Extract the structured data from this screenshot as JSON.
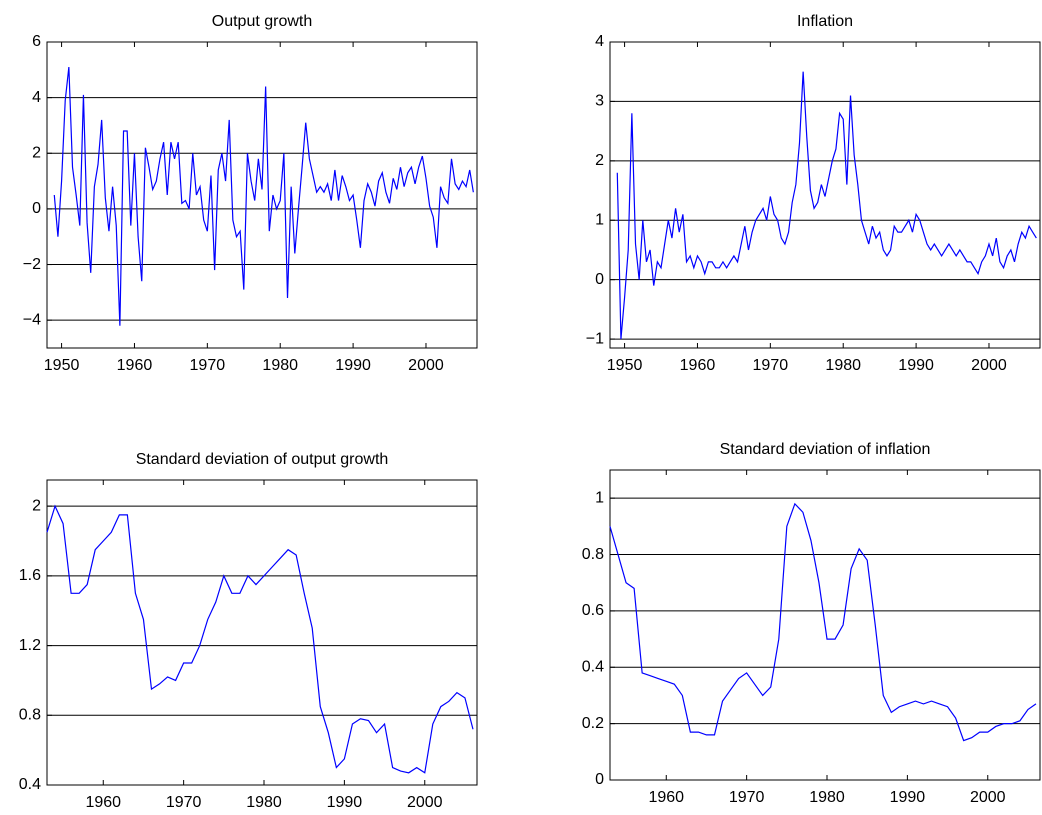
{
  "chart_data": [
    {
      "type": "line",
      "title": "Output growth",
      "color": "#0000ff",
      "grid": true,
      "xlim": [
        1948,
        2007
      ],
      "xticks": [
        1950,
        1960,
        1970,
        1980,
        1990,
        2000
      ],
      "ylim": [
        -5,
        6
      ],
      "yticks": [
        {
          "value": -4,
          "label": "−4"
        },
        {
          "value": -2,
          "label": "−2"
        },
        0,
        2,
        4,
        6
      ],
      "x": [
        1949,
        1949.5,
        1950,
        1950.5,
        1951,
        1951.5,
        1952,
        1952.5,
        1953,
        1953.5,
        1954,
        1954.5,
        1955,
        1955.5,
        1956,
        1956.5,
        1957,
        1957.5,
        1958,
        1958.5,
        1959,
        1959.5,
        1960,
        1960.5,
        1961,
        1961.5,
        1962,
        1962.5,
        1963,
        1963.5,
        1964,
        1964.5,
        1965,
        1965.5,
        1966,
        1966.5,
        1967,
        1967.5,
        1968,
        1968.5,
        1969,
        1969.5,
        1970,
        1970.5,
        1971,
        1971.5,
        1972,
        1972.5,
        1973,
        1973.5,
        1974,
        1974.5,
        1975,
        1975.5,
        1976,
        1976.5,
        1977,
        1977.5,
        1978,
        1978.5,
        1979,
        1979.5,
        1980,
        1980.5,
        1981,
        1981.5,
        1982,
        1982.5,
        1983,
        1983.5,
        1984,
        1984.5,
        1985,
        1985.5,
        1986,
        1986.5,
        1987,
        1987.5,
        1988,
        1988.5,
        1989,
        1989.5,
        1990,
        1990.5,
        1991,
        1991.5,
        1992,
        1992.5,
        1993,
        1993.5,
        1994,
        1994.5,
        1995,
        1995.5,
        1996,
        1996.5,
        1997,
        1997.5,
        1998,
        1998.5,
        1999,
        1999.5,
        2000,
        2000.5,
        2001,
        2001.5,
        2002,
        2002.5,
        2003,
        2003.5,
        2004,
        2004.5,
        2005,
        2005.5,
        2006,
        2006.5
      ],
      "values": [
        0.5,
        -1.0,
        1.0,
        3.9,
        5.1,
        1.5,
        0.5,
        -0.6,
        4.1,
        -0.5,
        -2.3,
        0.8,
        1.6,
        3.2,
        0.4,
        -0.8,
        0.8,
        -0.6,
        -4.2,
        2.8,
        2.8,
        -0.6,
        2.0,
        -1.0,
        -2.6,
        2.2,
        1.5,
        0.7,
        1.0,
        1.8,
        2.4,
        0.5,
        2.4,
        1.8,
        2.4,
        0.2,
        0.3,
        0.0,
        2.0,
        0.5,
        0.8,
        -0.4,
        -0.8,
        1.2,
        -2.2,
        1.4,
        2.0,
        1.0,
        3.2,
        -0.4,
        -1.0,
        -0.8,
        -2.9,
        2.0,
        1.0,
        0.3,
        1.8,
        0.7,
        4.4,
        -0.8,
        0.5,
        0.0,
        0.3,
        2.0,
        -3.2,
        0.8,
        -1.6,
        0.0,
        1.5,
        3.1,
        1.8,
        1.2,
        0.6,
        0.8,
        0.6,
        0.9,
        0.3,
        1.4,
        0.3,
        1.2,
        0.8,
        0.3,
        0.5,
        -0.4,
        -1.4,
        0.3,
        0.9,
        0.6,
        0.1,
        1.0,
        1.3,
        0.6,
        0.2,
        1.1,
        0.7,
        1.5,
        0.8,
        1.3,
        1.5,
        0.9,
        1.5,
        1.9,
        1.1,
        0.1,
        -0.3,
        -1.4,
        0.8,
        0.4,
        0.2,
        1.8,
        0.9,
        0.7,
        1.0,
        0.8,
        1.4,
        0.6
      ]
    },
    {
      "type": "line",
      "title": "Inflation",
      "color": "#0000ff",
      "grid": true,
      "xlim": [
        1948,
        2007
      ],
      "xticks": [
        1950,
        1960,
        1970,
        1980,
        1990,
        2000
      ],
      "ylim": [
        -1.15,
        4
      ],
      "yticks": [
        {
          "value": -1,
          "label": "−1"
        },
        0,
        1,
        2,
        3,
        4
      ],
      "x": [
        1949,
        1949.5,
        1950,
        1950.5,
        1951,
        1951.5,
        1952,
        1952.5,
        1953,
        1953.5,
        1954,
        1954.5,
        1955,
        1955.5,
        1956,
        1956.5,
        1957,
        1957.5,
        1958,
        1958.5,
        1959,
        1959.5,
        1960,
        1960.5,
        1961,
        1961.5,
        1962,
        1962.5,
        1963,
        1963.5,
        1964,
        1964.5,
        1965,
        1965.5,
        1966,
        1966.5,
        1967,
        1967.5,
        1968,
        1968.5,
        1969,
        1969.5,
        1970,
        1970.5,
        1971,
        1971.5,
        1972,
        1972.5,
        1973,
        1973.5,
        1974,
        1974.5,
        1975,
        1975.5,
        1976,
        1976.5,
        1977,
        1977.5,
        1978,
        1978.5,
        1979,
        1979.5,
        1980,
        1980.5,
        1981,
        1981.5,
        1982,
        1982.5,
        1983,
        1983.5,
        1984,
        1984.5,
        1985,
        1985.5,
        1986,
        1986.5,
        1987,
        1987.5,
        1988,
        1988.5,
        1989,
        1989.5,
        1990,
        1990.5,
        1991,
        1991.5,
        1992,
        1992.5,
        1993,
        1993.5,
        1994,
        1994.5,
        1995,
        1995.5,
        1996,
        1996.5,
        1997,
        1997.5,
        1998,
        1998.5,
        1999,
        1999.5,
        2000,
        2000.5,
        2001,
        2001.5,
        2002,
        2002.5,
        2003,
        2003.5,
        2004,
        2004.5,
        2005,
        2005.5,
        2006,
        2006.5
      ],
      "values": [
        1.8,
        -1.0,
        -0.3,
        0.5,
        2.8,
        0.6,
        0.0,
        1.0,
        0.3,
        0.5,
        -0.1,
        0.3,
        0.2,
        0.6,
        1.0,
        0.7,
        1.2,
        0.8,
        1.1,
        0.3,
        0.4,
        0.2,
        0.4,
        0.3,
        0.1,
        0.3,
        0.3,
        0.2,
        0.2,
        0.3,
        0.2,
        0.3,
        0.4,
        0.3,
        0.6,
        0.9,
        0.5,
        0.8,
        1.0,
        1.1,
        1.2,
        1.0,
        1.4,
        1.1,
        1.0,
        0.7,
        0.6,
        0.8,
        1.3,
        1.6,
        2.3,
        3.5,
        2.4,
        1.5,
        1.2,
        1.3,
        1.6,
        1.4,
        1.7,
        2.0,
        2.2,
        2.8,
        2.7,
        1.6,
        3.1,
        2.1,
        1.6,
        1.0,
        0.8,
        0.6,
        0.9,
        0.7,
        0.8,
        0.5,
        0.4,
        0.5,
        0.9,
        0.8,
        0.8,
        0.9,
        1.0,
        0.8,
        1.1,
        1.0,
        0.8,
        0.6,
        0.5,
        0.6,
        0.5,
        0.4,
        0.5,
        0.6,
        0.5,
        0.4,
        0.5,
        0.4,
        0.3,
        0.3,
        0.2,
        0.1,
        0.3,
        0.4,
        0.6,
        0.4,
        0.7,
        0.3,
        0.2,
        0.4,
        0.5,
        0.3,
        0.6,
        0.8,
        0.7,
        0.9,
        0.8,
        0.7
      ]
    },
    {
      "type": "line",
      "title": "Standard deviation of output growth",
      "color": "#0000ff",
      "grid": true,
      "xlim": [
        1953,
        2006.5
      ],
      "xticks": [
        1960,
        1970,
        1980,
        1990,
        2000
      ],
      "ylim": [
        0.4,
        2.15
      ],
      "yticks": [
        0.4,
        0.8,
        1.2,
        1.6,
        2
      ],
      "x": [
        1953,
        1954,
        1955,
        1956,
        1957,
        1958,
        1959,
        1960,
        1961,
        1962,
        1963,
        1964,
        1965,
        1966,
        1967,
        1968,
        1969,
        1970,
        1971,
        1972,
        1973,
        1974,
        1975,
        1976,
        1977,
        1978,
        1979,
        1980,
        1981,
        1982,
        1983,
        1984,
        1985,
        1986,
        1987,
        1988,
        1989,
        1990,
        1991,
        1992,
        1993,
        1994,
        1995,
        1996,
        1997,
        1998,
        1999,
        2000,
        2001,
        2002,
        2003,
        2004,
        2005,
        2006
      ],
      "values": [
        1.85,
        2.0,
        1.9,
        1.5,
        1.5,
        1.55,
        1.75,
        1.8,
        1.85,
        1.95,
        1.95,
        1.5,
        1.35,
        0.95,
        0.98,
        1.02,
        1.0,
        1.1,
        1.1,
        1.2,
        1.35,
        1.45,
        1.6,
        1.5,
        1.5,
        1.6,
        1.55,
        1.6,
        1.65,
        1.7,
        1.75,
        1.72,
        1.5,
        1.3,
        0.85,
        0.7,
        0.5,
        0.55,
        0.75,
        0.78,
        0.77,
        0.7,
        0.75,
        0.5,
        0.48,
        0.47,
        0.5,
        0.47,
        0.75,
        0.85,
        0.88,
        0.93,
        0.9,
        0.72
      ]
    },
    {
      "type": "line",
      "title": "Standard deviation of inflation",
      "color": "#0000ff",
      "grid": true,
      "xlim": [
        1953,
        2006.5
      ],
      "xticks": [
        1960,
        1970,
        1980,
        1990,
        2000
      ],
      "ylim": [
        0,
        1.1
      ],
      "yticks": [
        0,
        0.2,
        0.4,
        0.6,
        0.8,
        1
      ],
      "x": [
        1953,
        1954,
        1955,
        1956,
        1957,
        1958,
        1959,
        1960,
        1961,
        1962,
        1963,
        1964,
        1965,
        1966,
        1967,
        1968,
        1969,
        1970,
        1971,
        1972,
        1973,
        1974,
        1975,
        1976,
        1977,
        1978,
        1979,
        1980,
        1981,
        1982,
        1983,
        1984,
        1985,
        1986,
        1987,
        1988,
        1989,
        1990,
        1991,
        1992,
        1993,
        1994,
        1995,
        1996,
        1997,
        1998,
        1999,
        2000,
        2001,
        2002,
        2003,
        2004,
        2005,
        2006
      ],
      "values": [
        0.9,
        0.8,
        0.7,
        0.68,
        0.38,
        0.37,
        0.36,
        0.35,
        0.34,
        0.3,
        0.17,
        0.17,
        0.16,
        0.16,
        0.28,
        0.32,
        0.36,
        0.38,
        0.34,
        0.3,
        0.33,
        0.5,
        0.9,
        0.98,
        0.95,
        0.85,
        0.7,
        0.5,
        0.5,
        0.55,
        0.75,
        0.82,
        0.78,
        0.55,
        0.3,
        0.24,
        0.26,
        0.27,
        0.28,
        0.27,
        0.28,
        0.27,
        0.26,
        0.22,
        0.14,
        0.15,
        0.17,
        0.17,
        0.19,
        0.2,
        0.2,
        0.21,
        0.25,
        0.27
      ]
    }
  ]
}
